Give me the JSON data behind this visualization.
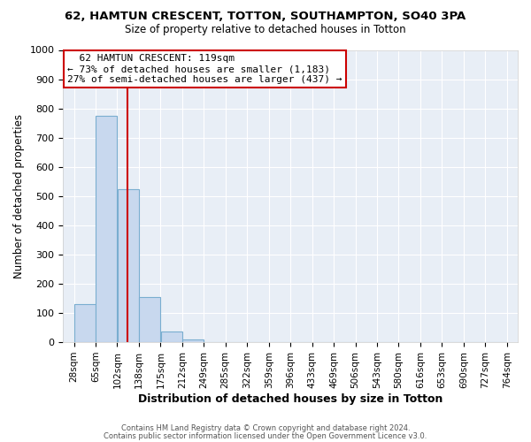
{
  "title": "62, HAMTUN CRESCENT, TOTTON, SOUTHAMPTON, SO40 3PA",
  "subtitle": "Size of property relative to detached houses in Totton",
  "xlabel": "Distribution of detached houses by size in Totton",
  "ylabel": "Number of detached properties",
  "bar_edges": [
    28,
    65,
    102,
    139,
    176,
    213,
    250,
    287,
    324,
    361,
    398,
    435,
    472,
    509,
    546,
    583,
    620,
    657,
    694,
    731,
    768
  ],
  "bar_values": [
    130,
    775,
    525,
    155,
    38,
    10,
    0,
    0,
    0,
    0,
    0,
    0,
    0,
    0,
    0,
    0,
    0,
    0,
    0,
    0
  ],
  "tick_labels": [
    "28sqm",
    "65sqm",
    "102sqm",
    "138sqm",
    "175sqm",
    "212sqm",
    "249sqm",
    "285sqm",
    "322sqm",
    "359sqm",
    "396sqm",
    "433sqm",
    "469sqm",
    "506sqm",
    "543sqm",
    "580sqm",
    "616sqm",
    "653sqm",
    "690sqm",
    "727sqm",
    "764sqm"
  ],
  "bar_color": "#c8d8ee",
  "bar_edgecolor": "#7aaed0",
  "property_line_x": 119,
  "property_line_color": "#cc0000",
  "annotation_title": "62 HAMTUN CRESCENT: 119sqm",
  "annotation_line1": "← 73% of detached houses are smaller (1,183)",
  "annotation_line2": "27% of semi-detached houses are larger (437) →",
  "annotation_box_color": "#cc0000",
  "ylim": [
    0,
    1000
  ],
  "yticks": [
    0,
    100,
    200,
    300,
    400,
    500,
    600,
    700,
    800,
    900,
    1000
  ],
  "footer1": "Contains HM Land Registry data © Crown copyright and database right 2024.",
  "footer2": "Contains public sector information licensed under the Open Government Licence v3.0.",
  "bg_color": "#ffffff",
  "plot_bg_color": "#e8eef6",
  "grid_color": "#ffffff",
  "title_fontsize": 9.5,
  "subtitle_fontsize": 8.5,
  "xlabel_fontsize": 9.0,
  "ylabel_fontsize": 8.5,
  "tick_fontsize": 7.5,
  "ytick_fontsize": 8.0,
  "footer_fontsize": 6.0
}
